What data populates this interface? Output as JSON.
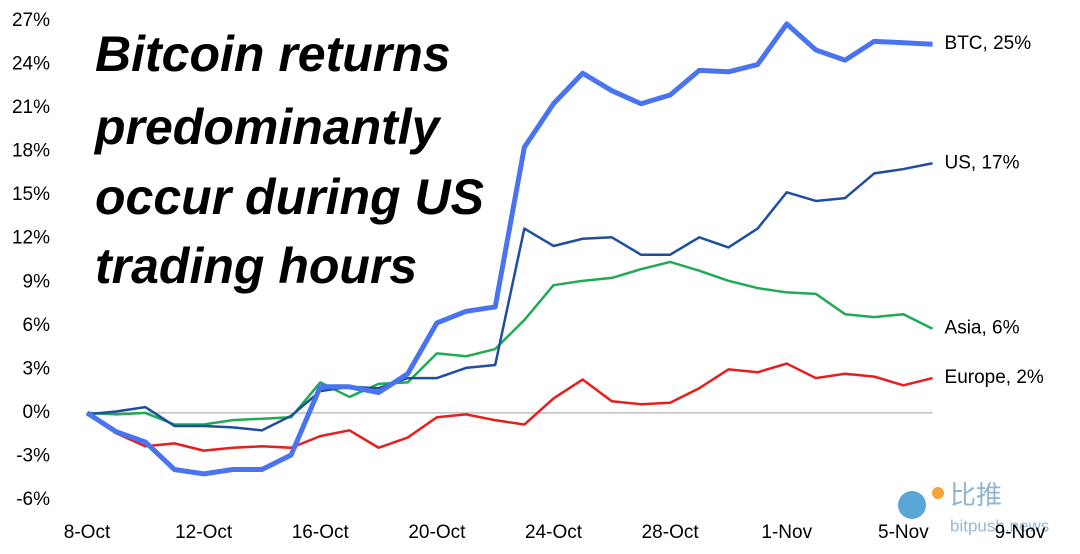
{
  "chart_data": {
    "type": "line",
    "title_lines": [
      "Bitcoin returns",
      "predominantly",
      "occur during US",
      "trading hours"
    ],
    "categories": [
      "8-Oct",
      null,
      null,
      null,
      "12-Oct",
      null,
      null,
      null,
      "16-Oct",
      null,
      null,
      null,
      "20-Oct",
      null,
      null,
      null,
      "24-Oct",
      null,
      null,
      null,
      "28-Oct",
      null,
      null,
      null,
      "1-Nov",
      null,
      null,
      null,
      "5-Nov",
      null,
      null,
      null,
      "9-Nov"
    ],
    "series": [
      {
        "name": "BTC",
        "end_label": "BTC, 25%",
        "color": "#4a73f0",
        "width": 5,
        "values": [
          0,
          -1.3,
          -2,
          -3.9,
          -4.2,
          -3.9,
          -3.9,
          -2.9,
          1.8,
          1.8,
          1.4,
          2.7,
          6.2,
          7,
          7.3,
          18.3,
          21.3,
          23.4,
          22.2,
          21.3,
          21.9,
          23.6,
          23.5,
          24,
          26.8,
          25,
          24.3,
          25.6,
          25.5,
          25.4,
          null,
          null,
          null
        ]
      },
      {
        "name": "US",
        "end_label": "US, 17%",
        "color": "#1f4e9e",
        "width": 2.5,
        "values": [
          -0.1,
          0.1,
          0.4,
          -0.9,
          -0.9,
          -1,
          -1.2,
          -0.2,
          1.5,
          1.8,
          1.7,
          2.4,
          2.4,
          3.1,
          3.3,
          12.7,
          11.5,
          12,
          12.1,
          10.9,
          10.9,
          12.1,
          11.4,
          12.7,
          15.2,
          14.6,
          14.8,
          16.5,
          16.8,
          17.2,
          null,
          null,
          null
        ]
      },
      {
        "name": "Asia",
        "end_label": "Asia, 6%",
        "color": "#1faa55",
        "width": 2.5,
        "values": [
          0,
          -0.1,
          0,
          -0.8,
          -0.8,
          -0.5,
          -0.4,
          -0.3,
          2.1,
          1.1,
          2,
          2.1,
          4.1,
          3.9,
          4.4,
          6.4,
          8.8,
          9.1,
          9.3,
          9.9,
          10.4,
          9.8,
          9.1,
          8.6,
          8.3,
          8.2,
          6.8,
          6.6,
          6.8,
          5.8,
          null,
          null,
          null
        ]
      },
      {
        "name": "Europe",
        "end_label": "Europe, 2%",
        "color": "#e81d1d",
        "width": 2.5,
        "values": [
          0,
          -1.4,
          -2.3,
          -2.1,
          -2.6,
          -2.4,
          -2.3,
          -2.4,
          -1.6,
          -1.2,
          -2.4,
          -1.7,
          -0.3,
          -0.1,
          -0.5,
          -0.8,
          1,
          2.3,
          0.8,
          0.6,
          0.7,
          1.7,
          3,
          2.8,
          3.4,
          2.4,
          2.7,
          2.5,
          1.9,
          2.4,
          null,
          null,
          null
        ]
      }
    ],
    "ylim": [
      -6,
      27
    ],
    "yticks": [
      {
        "value": -6,
        "label": "-6%"
      },
      {
        "value": -3,
        "label": "-3%"
      },
      {
        "value": 0,
        "label": "0%"
      },
      {
        "value": 3,
        "label": "3%"
      },
      {
        "value": 6,
        "label": "6%"
      },
      {
        "value": 9,
        "label": "9%"
      },
      {
        "value": 12,
        "label": "12%"
      },
      {
        "value": 15,
        "label": "15%"
      },
      {
        "value": 18,
        "label": "18%"
      },
      {
        "value": 21,
        "label": "21%"
      },
      {
        "value": 24,
        "label": "24%"
      },
      {
        "value": 27,
        "label": "27%"
      }
    ],
    "watermark": [
      "比推",
      "bitpush.news"
    ]
  }
}
